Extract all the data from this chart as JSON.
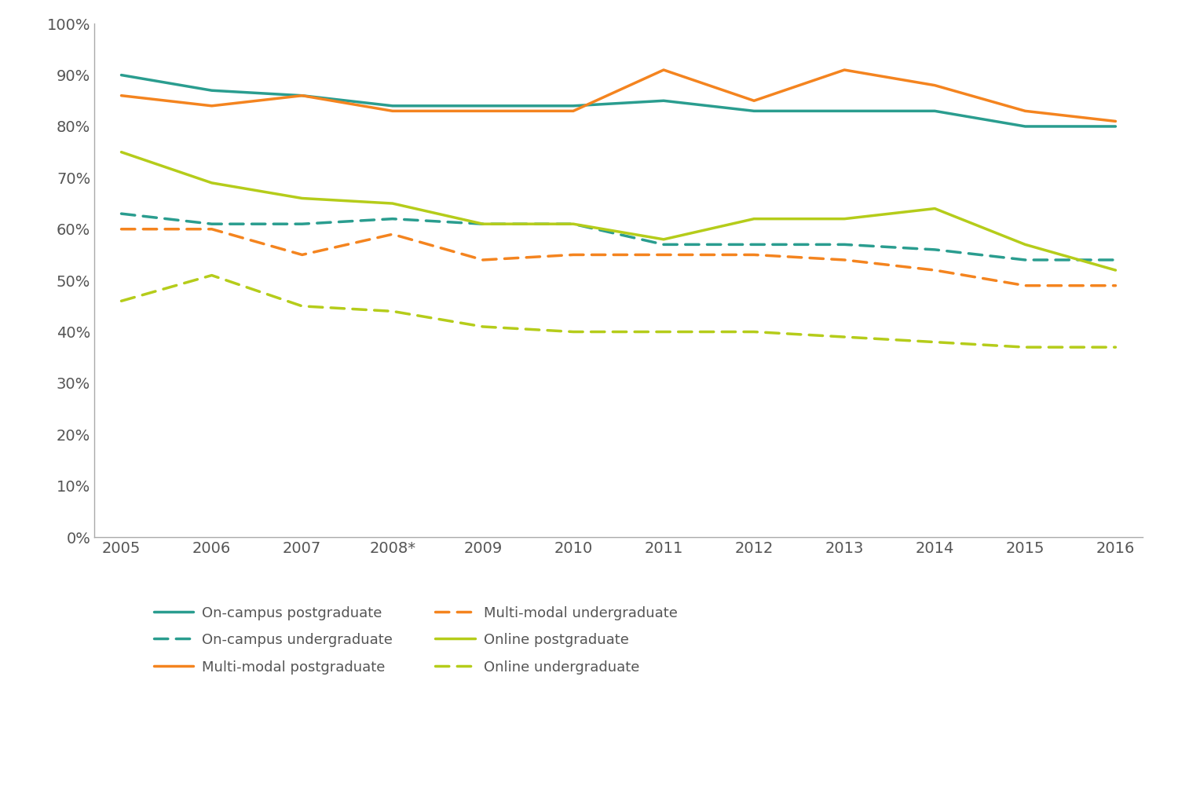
{
  "x_labels": [
    "2005",
    "2006",
    "2007",
    "2008*",
    "2009",
    "2010",
    "2011",
    "2012",
    "2013",
    "2014",
    "2015",
    "2016"
  ],
  "x_values": [
    0,
    1,
    2,
    3,
    4,
    5,
    6,
    7,
    8,
    9,
    10,
    11
  ],
  "series": [
    {
      "label": "On-campus postgraduate",
      "color": "#2a9d8f",
      "linestyle": "solid",
      "linewidth": 2.5,
      "values": [
        0.9,
        0.87,
        0.86,
        0.84,
        0.84,
        0.84,
        0.85,
        0.83,
        0.83,
        0.83,
        0.8,
        0.8
      ]
    },
    {
      "label": "On-campus undergraduate",
      "color": "#2a9d8f",
      "linestyle": "dashed",
      "linewidth": 2.5,
      "values": [
        0.63,
        0.61,
        0.61,
        0.62,
        0.61,
        0.61,
        0.57,
        0.57,
        0.57,
        0.56,
        0.54,
        0.54
      ]
    },
    {
      "label": "Multi-modal postgraduate",
      "color": "#f4841f",
      "linestyle": "solid",
      "linewidth": 2.5,
      "values": [
        0.86,
        0.84,
        0.86,
        0.83,
        0.83,
        0.83,
        0.91,
        0.85,
        0.91,
        0.88,
        0.83,
        0.81
      ]
    },
    {
      "label": "Multi-modal undergraduate",
      "color": "#f4841f",
      "linestyle": "dashed",
      "linewidth": 2.5,
      "values": [
        0.6,
        0.6,
        0.55,
        0.59,
        0.54,
        0.55,
        0.55,
        0.55,
        0.54,
        0.52,
        0.49,
        0.49
      ]
    },
    {
      "label": "Online postgraduate",
      "color": "#b5cc1a",
      "linestyle": "solid",
      "linewidth": 2.5,
      "values": [
        0.75,
        0.69,
        0.66,
        0.65,
        0.61,
        0.61,
        0.58,
        0.62,
        0.62,
        0.64,
        0.57,
        0.52
      ]
    },
    {
      "label": "Online undergraduate",
      "color": "#b5cc1a",
      "linestyle": "dashed",
      "linewidth": 2.5,
      "values": [
        0.46,
        0.51,
        0.45,
        0.44,
        0.41,
        0.4,
        0.4,
        0.4,
        0.39,
        0.38,
        0.37,
        0.37
      ]
    }
  ],
  "ylim": [
    0.0,
    1.0
  ],
  "yticks": [
    0.0,
    0.1,
    0.2,
    0.3,
    0.4,
    0.5,
    0.6,
    0.7,
    0.8,
    0.9,
    1.0
  ],
  "background_color": "#ffffff",
  "text_color": "#555555",
  "axis_color": "#aaaaaa",
  "legend_fontsize": 13,
  "tick_fontsize": 14
}
